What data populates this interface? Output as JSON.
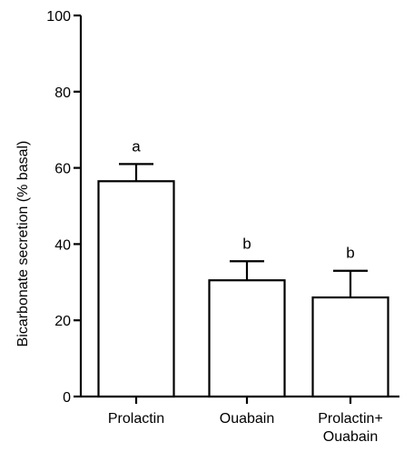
{
  "chart_data": {
    "type": "bar",
    "title": "",
    "xlabel": "",
    "ylabel": "Bicarbonate secretion (% basal)",
    "ylim": [
      0,
      100
    ],
    "yticks": [
      0,
      20,
      40,
      60,
      80,
      100
    ],
    "categories": [
      [
        "Prolactin"
      ],
      [
        "Ouabain"
      ],
      [
        "Prolactin+",
        "Ouabain"
      ]
    ],
    "values": [
      56.5,
      30.5,
      26
    ],
    "errors": [
      4.5,
      5,
      7
    ],
    "annotations": [
      "a",
      "b",
      "b"
    ],
    "grid": false,
    "legend": "none"
  }
}
